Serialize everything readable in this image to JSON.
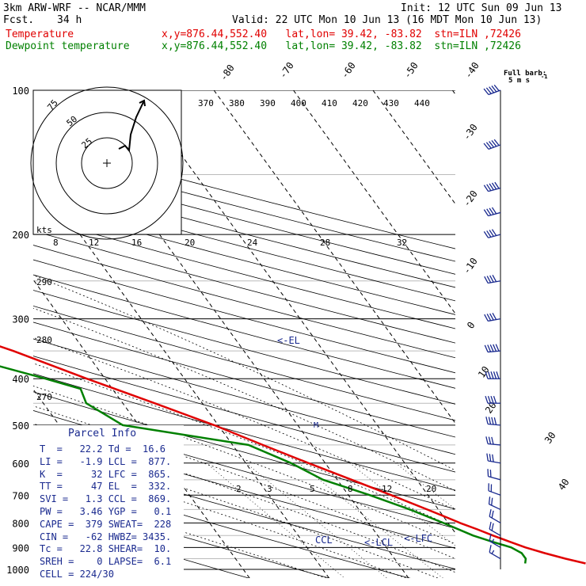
{
  "header": {
    "model": "3km ARW-WRF -- NCAR/MMM",
    "init": "Init: 12 UTC Sun 09 Jun 13",
    "fcst_label": "Fcst.",
    "fcst_value": "34 h",
    "valid": "Valid: 22 UTC Mon 10 Jun 13 (16 MDT Mon 10 Jun 13)",
    "temp_label": "Temperature",
    "dew_label": "Dewpoint temperature",
    "temp_loc": "x,y=876.44,552.40   lat,lon= 39.42, -83.82  stn=ILN ,72426",
    "dew_loc": "x,y=876.44,552.40   lat,lon= 39.42, -83.82  stn=ILN ,72426",
    "barb_key_title": "Full barb:",
    "barb_key_value": "5 m s",
    "barb_key_exp": "-1"
  },
  "parcel_info": {
    "title": "Parcel Info",
    "lines": [
      "T  =   22.2 Td =  16.6",
      "LI =   -1.9 LCL =  877.",
      "K  =     32 LFC =  865.",
      "TT =     47 EL  =  332.",
      "SVI =   1.3 CCL =  869.",
      "PW =   3.46 YGP =   0.1",
      "CAPE =  379 SWEAT=  228",
      "CIN =   -62 HWBZ= 3435.",
      "Tc =   22.8 SHEAR=  10.",
      "SREH =    0 LAPSE=  6.1",
      "CELL = 224/30"
    ]
  },
  "hodograph": {
    "ring_labels": [
      "25",
      "50",
      "75"
    ],
    "units": "kts"
  },
  "markers": {
    "el": "<-EL",
    "lcl": "<-LCL",
    "lfc": "<-LFC",
    "ccl": "CCL",
    "parcel_mark": "M"
  },
  "chart_data": {
    "type": "line",
    "title": "",
    "y_axis": "pressure (hPa, log)",
    "ylim": [
      1000,
      100
    ],
    "pressure_labels": [
      "100",
      "200",
      "300",
      "400",
      "500",
      "600",
      "700",
      "800",
      "900",
      "1000"
    ],
    "isotherm_labels": [
      "-80",
      "-70",
      "-60",
      "-50",
      "-40",
      "-30",
      "-20",
      "-10",
      "0",
      "10",
      "20",
      "30",
      "40"
    ],
    "theta_labels": [
      "370",
      "380",
      "390",
      "400",
      "410",
      "420",
      "430",
      "440"
    ],
    "mixing_ratio_upper": [
      "8",
      "12",
      "16",
      "20",
      "24",
      "28",
      "32"
    ],
    "mixing_ratio_lower": [
      "2",
      "3",
      "5",
      "8",
      "12",
      "20"
    ],
    "dry_adiabat_labels": [
      "290",
      "280",
      "270"
    ],
    "series": [
      {
        "name": "Temperature",
        "color": "#e00000",
        "p": [
          972,
          950,
          925,
          900,
          875,
          850,
          825,
          800,
          775,
          750,
          700,
          650,
          600,
          550,
          500,
          450,
          400,
          350,
          300,
          275,
          250,
          225,
          200,
          175,
          150,
          130,
          115,
          100
        ],
        "t": [
          23.6,
          21.5,
          19.4,
          17.5,
          16.0,
          14.5,
          13.1,
          11.5,
          10.1,
          8.6,
          5.4,
          1.8,
          -2.1,
          -6.2,
          -10.5,
          -16.0,
          -22.3,
          -29.0,
          -37.8,
          -42.5,
          -46.0,
          -52.0,
          -57.2,
          -59.0,
          -62.8,
          -65.5,
          -66.5,
          -68.5
        ]
      },
      {
        "name": "Dewpoint temperature",
        "color": "#008000",
        "p": [
          972,
          950,
          925,
          900,
          875,
          850,
          800,
          750,
          700,
          650,
          600,
          550,
          500,
          450,
          420,
          400,
          350,
          300,
          275,
          250,
          225,
          200,
          175,
          150,
          130,
          115,
          100
        ],
        "td": [
          16.0,
          16.5,
          16.5,
          15.7,
          13.8,
          12.0,
          9.4,
          6.4,
          2.7,
          -1.8,
          -4.3,
          -8.0,
          -22.0,
          -24.6,
          -24.0,
          -27.5,
          -37.8,
          -55.0,
          -67.0,
          -77.0,
          -81.0,
          -82.5,
          -87.0,
          -90.0,
          -92.0,
          -94.0,
          -95.0
        ]
      }
    ],
    "wind_barbs": {
      "p": [
        100,
        130,
        160,
        180,
        200,
        250,
        300,
        350,
        400,
        450,
        500,
        550,
        600,
        650,
        700,
        750,
        800,
        850,
        900,
        950
      ],
      "dir_deg": [
        250,
        250,
        255,
        255,
        255,
        260,
        260,
        265,
        270,
        270,
        275,
        275,
        280,
        285,
        290,
        295,
        300,
        300,
        300,
        300
      ],
      "speed_ms": [
        25,
        25,
        25,
        22,
        20,
        20,
        22,
        25,
        25,
        22,
        20,
        15,
        15,
        12,
        12,
        10,
        10,
        10,
        8,
        8
      ]
    },
    "grid": true
  }
}
